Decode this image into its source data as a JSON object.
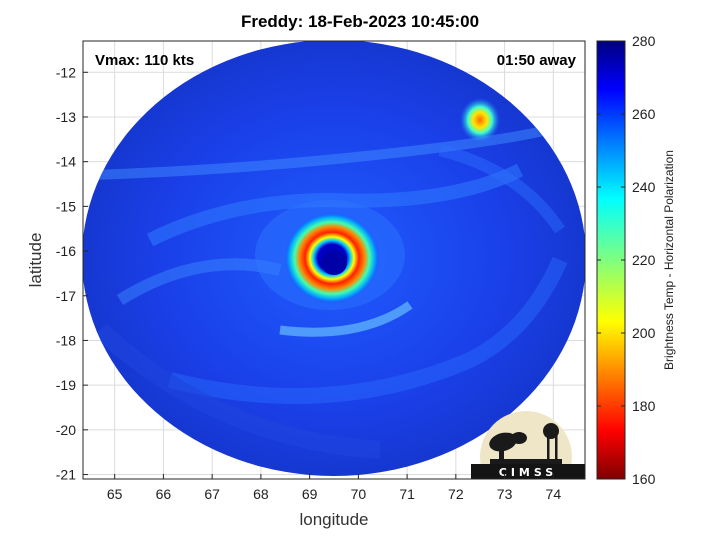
{
  "title": "Freddy: 18-Feb-2023 10:45:00",
  "annotations": {
    "vmax": "Vmax: 110 kts",
    "age": "01:50 away"
  },
  "chart_data": {
    "type": "heatmap",
    "xlabel": "longitude",
    "ylabel": "latitude",
    "x_ticks": [
      65,
      66,
      67,
      68,
      69,
      70,
      71,
      72,
      73,
      74
    ],
    "y_ticks": [
      -12,
      -13,
      -14,
      -15,
      -16,
      -17,
      -18,
      -19,
      -20,
      -21
    ],
    "xlim": [
      64.35,
      74.65
    ],
    "ylim": [
      -21.1,
      -11.3
    ],
    "grid": true,
    "colorbar": {
      "label": "Brightness Temp - Horizontal Polarization",
      "ticks": [
        280,
        260,
        240,
        220,
        200,
        180,
        160
      ],
      "range": [
        160,
        280
      ],
      "colormap": "jet"
    },
    "features": {
      "eye_center": {
        "lon": 69.55,
        "lat": -16.15
      },
      "cold_spot": {
        "lon": 72.7,
        "lat": -13.0
      }
    }
  },
  "logo": {
    "text": "CIMSS"
  },
  "colors": {
    "background": "#ffffff",
    "axis": "#262626"
  }
}
